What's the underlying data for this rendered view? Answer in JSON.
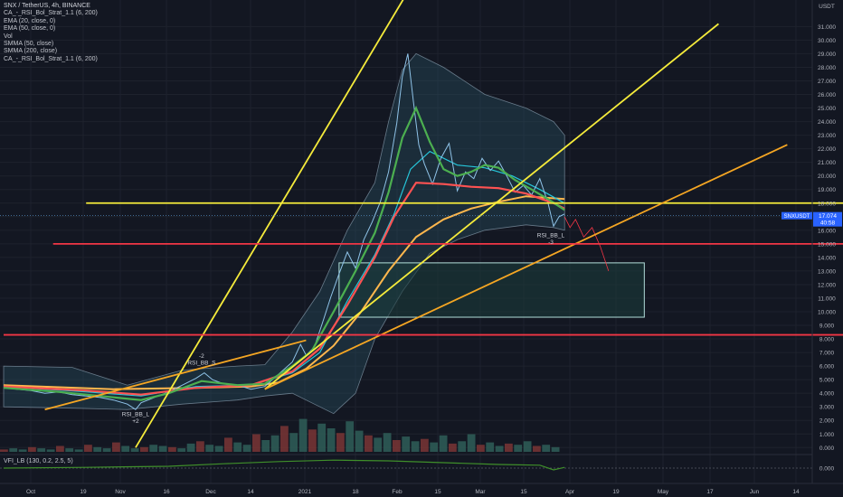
{
  "legend": {
    "symbol": "SNX / TetherUS, 4h, BINANCE",
    "lines": [
      "CA_-_RSI_Bol_Strat_1.1 (6, 200)",
      "EMA (20, close, 0)",
      "EMA (50, close, 0)",
      "Vol",
      "SMMA (50, close)",
      "SMMA (200, close)",
      "CA_-_RSI_Bol_Strat_1.1 (6, 200)"
    ]
  },
  "vfi_label": "VFI_LB (130, 0.2, 2.5, 5)",
  "currency": "USDT",
  "price_tag": {
    "symbol": "SNXUSDT",
    "price": "17.074",
    "countdown": "40:58"
  },
  "colors": {
    "background": "#131722",
    "grid": "#1e222d",
    "trend_yellow": "#f5eb3b",
    "trend_orange": "#f5a623",
    "support_red": "#f23645",
    "ema20": "#4caf50",
    "ema50": "#26c6da",
    "smma50": "#ff5252",
    "smma200": "#ffb74d",
    "band_fill": "#2a5568",
    "box_stroke": "#b2dfdb",
    "vfi": "#3f8f2a"
  },
  "chart_data": {
    "type": "line",
    "title": "SNX / TetherUS, 4h, BINANCE",
    "price_axis": {
      "ticks": [
        "31.000",
        "30.000",
        "29.000",
        "28.000",
        "27.000",
        "26.000",
        "25.000",
        "24.000",
        "23.000",
        "22.000",
        "21.000",
        "20.000",
        "19.000",
        "18.000",
        "17.000",
        "16.000",
        "15.000",
        "14.000",
        "13.000",
        "12.000",
        "11.000",
        "10.000",
        "9.000",
        "8.000",
        "7.000",
        "6.000",
        "5.000",
        "4.000",
        "3.000",
        "2.000",
        "1.000",
        "0.000"
      ],
      "vfi_ticks": [
        "0.000"
      ],
      "range": [
        0,
        31.5
      ]
    },
    "time_axis": {
      "ticks": [
        "Oct",
        "19",
        "Nov",
        "16",
        "Dec",
        "14",
        "2021",
        "18",
        "Feb",
        "15",
        "Mar",
        "15",
        "Apr",
        "19",
        "May",
        "17",
        "Jun",
        "14"
      ]
    },
    "price_series": [
      [
        0,
        4.4
      ],
      [
        5,
        4.3
      ],
      [
        10,
        4.2
      ],
      [
        15,
        4.0
      ],
      [
        20,
        4.1
      ],
      [
        25,
        3.9
      ],
      [
        30,
        3.8
      ],
      [
        35,
        3.7
      ],
      [
        40,
        3.5
      ],
      [
        45,
        3.2
      ],
      [
        48,
        2.8
      ],
      [
        50,
        3.3
      ],
      [
        55,
        3.7
      ],
      [
        60,
        4.1
      ],
      [
        65,
        4.6
      ],
      [
        70,
        5.1
      ],
      [
        73,
        5.5
      ],
      [
        76,
        5.0
      ],
      [
        80,
        4.7
      ],
      [
        85,
        4.6
      ],
      [
        90,
        4.3
      ],
      [
        95,
        4.5
      ],
      [
        100,
        5.4
      ],
      [
        105,
        6.3
      ],
      [
        108,
        7.6
      ],
      [
        110,
        6.8
      ],
      [
        113,
        7.4
      ],
      [
        116,
        9.2
      ],
      [
        119,
        11.1
      ],
      [
        122,
        12.8
      ],
      [
        125,
        14.4
      ],
      [
        128,
        13.2
      ],
      [
        131,
        15.3
      ],
      [
        134,
        16.6
      ],
      [
        137,
        18.1
      ],
      [
        140,
        20.3
      ],
      [
        143,
        23.9
      ],
      [
        145,
        27.3
      ],
      [
        147,
        29.0
      ],
      [
        149,
        25.5
      ],
      [
        151,
        22.3
      ],
      [
        153,
        20.9
      ],
      [
        156,
        19.4
      ],
      [
        159,
        21.3
      ],
      [
        162,
        22.4
      ],
      [
        165,
        18.9
      ],
      [
        168,
        20.3
      ],
      [
        171,
        19.8
      ],
      [
        174,
        21.3
      ],
      [
        177,
        20.4
      ],
      [
        180,
        21.1
      ],
      [
        183,
        20.0
      ],
      [
        186,
        18.8
      ],
      [
        189,
        19.3
      ],
      [
        192,
        18.6
      ],
      [
        195,
        19.8
      ],
      [
        198,
        18.0
      ],
      [
        200,
        16.3
      ],
      [
        202,
        17.0
      ],
      [
        204,
        17.2
      ]
    ],
    "ema20": [
      [
        0,
        4.4
      ],
      [
        20,
        4.1
      ],
      [
        40,
        3.7
      ],
      [
        50,
        3.5
      ],
      [
        60,
        4.0
      ],
      [
        72,
        4.9
      ],
      [
        85,
        4.6
      ],
      [
        95,
        4.7
      ],
      [
        105,
        6.0
      ],
      [
        112,
        7.1
      ],
      [
        120,
        10.0
      ],
      [
        128,
        13.0
      ],
      [
        135,
        15.8
      ],
      [
        140,
        18.8
      ],
      [
        145,
        22.8
      ],
      [
        150,
        25.0
      ],
      [
        155,
        22.5
      ],
      [
        160,
        20.5
      ],
      [
        165,
        20.0
      ],
      [
        170,
        20.3
      ],
      [
        175,
        20.8
      ],
      [
        180,
        20.6
      ],
      [
        186,
        19.7
      ],
      [
        192,
        19.0
      ],
      [
        198,
        18.3
      ],
      [
        204,
        17.5
      ]
    ],
    "ema50": [
      [
        0,
        4.5
      ],
      [
        30,
        4.1
      ],
      [
        50,
        3.8
      ],
      [
        70,
        4.5
      ],
      [
        90,
        4.6
      ],
      [
        105,
        5.5
      ],
      [
        115,
        7.0
      ],
      [
        125,
        10.8
      ],
      [
        135,
        14.2
      ],
      [
        142,
        17.2
      ],
      [
        148,
        20.5
      ],
      [
        155,
        21.8
      ],
      [
        165,
        20.8
      ],
      [
        175,
        20.6
      ],
      [
        185,
        20.0
      ],
      [
        195,
        19.0
      ],
      [
        204,
        18.0
      ]
    ],
    "smma50": [
      [
        0,
        4.5
      ],
      [
        30,
        4.2
      ],
      [
        50,
        3.9
      ],
      [
        70,
        4.4
      ],
      [
        90,
        4.6
      ],
      [
        105,
        5.6
      ],
      [
        115,
        7.3
      ],
      [
        125,
        10.5
      ],
      [
        135,
        14.0
      ],
      [
        142,
        17.0
      ],
      [
        150,
        19.5
      ],
      [
        160,
        19.4
      ],
      [
        170,
        19.2
      ],
      [
        180,
        19.1
      ],
      [
        190,
        18.7
      ],
      [
        200,
        18.0
      ],
      [
        204,
        17.6
      ]
    ],
    "smma200": [
      [
        0,
        4.6
      ],
      [
        40,
        4.3
      ],
      [
        70,
        4.4
      ],
      [
        90,
        4.5
      ],
      [
        100,
        4.8
      ],
      [
        110,
        5.8
      ],
      [
        120,
        7.5
      ],
      [
        130,
        10.0
      ],
      [
        140,
        13.0
      ],
      [
        150,
        15.5
      ],
      [
        160,
        16.8
      ],
      [
        170,
        17.6
      ],
      [
        180,
        18.1
      ],
      [
        190,
        18.5
      ],
      [
        204,
        18.3
      ]
    ],
    "bollinger_upper": [
      [
        0,
        6.0
      ],
      [
        25,
        5.9
      ],
      [
        45,
        4.6
      ],
      [
        65,
        5.7
      ],
      [
        85,
        6.0
      ],
      [
        95,
        6.1
      ],
      [
        105,
        8.5
      ],
      [
        115,
        11.5
      ],
      [
        125,
        16.0
      ],
      [
        135,
        19.5
      ],
      [
        140,
        24.0
      ],
      [
        145,
        27.8
      ],
      [
        150,
        29.0
      ],
      [
        160,
        28.0
      ],
      [
        175,
        26.0
      ],
      [
        190,
        25.0
      ],
      [
        200,
        24.0
      ],
      [
        204,
        23.0
      ]
    ],
    "bollinger_lower": [
      [
        0,
        3.0
      ],
      [
        25,
        2.9
      ],
      [
        45,
        2.8
      ],
      [
        65,
        3.2
      ],
      [
        85,
        3.5
      ],
      [
        95,
        3.8
      ],
      [
        105,
        4.0
      ],
      [
        112,
        3.3
      ],
      [
        120,
        2.5
      ],
      [
        128,
        4.0
      ],
      [
        135,
        8.0
      ],
      [
        145,
        11.5
      ],
      [
        155,
        14.3
      ],
      [
        165,
        15.3
      ],
      [
        175,
        16.0
      ],
      [
        190,
        16.4
      ],
      [
        200,
        16.2
      ],
      [
        204,
        16.0
      ]
    ],
    "projection": [
      [
        204,
        17.0
      ],
      [
        206,
        16.2
      ],
      [
        208,
        16.8
      ],
      [
        211,
        15.5
      ],
      [
        214,
        16.2
      ],
      [
        217,
        14.8
      ],
      [
        220,
        13.0
      ]
    ],
    "trend_lines": [
      {
        "color": "yellow",
        "from": [
          48,
          0.0
        ],
        "to": [
          166,
          40.0
        ]
      },
      {
        "color": "yellow",
        "from": [
          95,
          4.3
        ],
        "to": [
          260,
          31.2
        ]
      },
      {
        "color": "yellow",
        "from": [
          30,
          18.0
        ],
        "to": [
          310,
          18.0
        ]
      },
      {
        "color": "orange",
        "from": [
          15,
          2.8
        ],
        "to": [
          110,
          7.9
        ]
      },
      {
        "color": "orange",
        "from": [
          95,
          4.3
        ],
        "to": [
          285,
          22.3
        ]
      },
      {
        "color": "red",
        "from": [
          18,
          15.0
        ],
        "to": [
          310,
          15.0
        ]
      },
      {
        "color": "red",
        "from": [
          0,
          8.3
        ],
        "to": [
          310,
          8.3
        ]
      }
    ],
    "target_box": {
      "x": [
        122,
        233
      ],
      "y": [
        9.6,
        13.6
      ]
    },
    "annotations": [
      {
        "text": "RSI_BB_S",
        "x": 72,
        "y": 6.1
      },
      {
        "text": "-2",
        "x": 72,
        "y": 6.6
      },
      {
        "text": "RSI_BB_L",
        "x": 48,
        "y": 2.3
      },
      {
        "text": "+2",
        "x": 48,
        "y": 1.8
      },
      {
        "text": "RSI_BB_L",
        "x": 199,
        "y": 15.5
      },
      {
        "text": "-3",
        "x": 199,
        "y": 15.0
      }
    ],
    "volume": [
      0.2,
      0.3,
      0.2,
      0.4,
      0.3,
      0.2,
      0.5,
      0.3,
      0.2,
      0.6,
      0.4,
      0.3,
      0.8,
      0.5,
      0.3,
      0.4,
      0.6,
      0.5,
      0.4,
      0.3,
      0.7,
      0.9,
      0.6,
      0.5,
      1.2,
      0.8,
      0.6,
      1.5,
      1.0,
      1.4,
      2.2,
      1.6,
      2.8,
      1.9,
      2.4,
      2.0,
      1.6,
      2.6,
      1.8,
      1.4,
      1.2,
      1.6,
      1.0,
      1.3,
      0.9,
      1.1,
      0.8,
      1.4,
      0.7,
      0.9,
      1.5,
      0.6,
      0.8,
      0.5,
      0.7,
      0.6,
      0.9,
      0.5,
      0.6,
      0.4
    ],
    "vfi": [
      [
        0,
        0.0
      ],
      [
        30,
        0.02
      ],
      [
        60,
        0.05
      ],
      [
        80,
        0.12
      ],
      [
        100,
        0.18
      ],
      [
        120,
        0.22
      ],
      [
        140,
        0.2
      ],
      [
        160,
        0.15
      ],
      [
        180,
        0.1
      ],
      [
        195,
        0.08
      ],
      [
        200,
        -0.05
      ],
      [
        204,
        0.02
      ]
    ]
  }
}
